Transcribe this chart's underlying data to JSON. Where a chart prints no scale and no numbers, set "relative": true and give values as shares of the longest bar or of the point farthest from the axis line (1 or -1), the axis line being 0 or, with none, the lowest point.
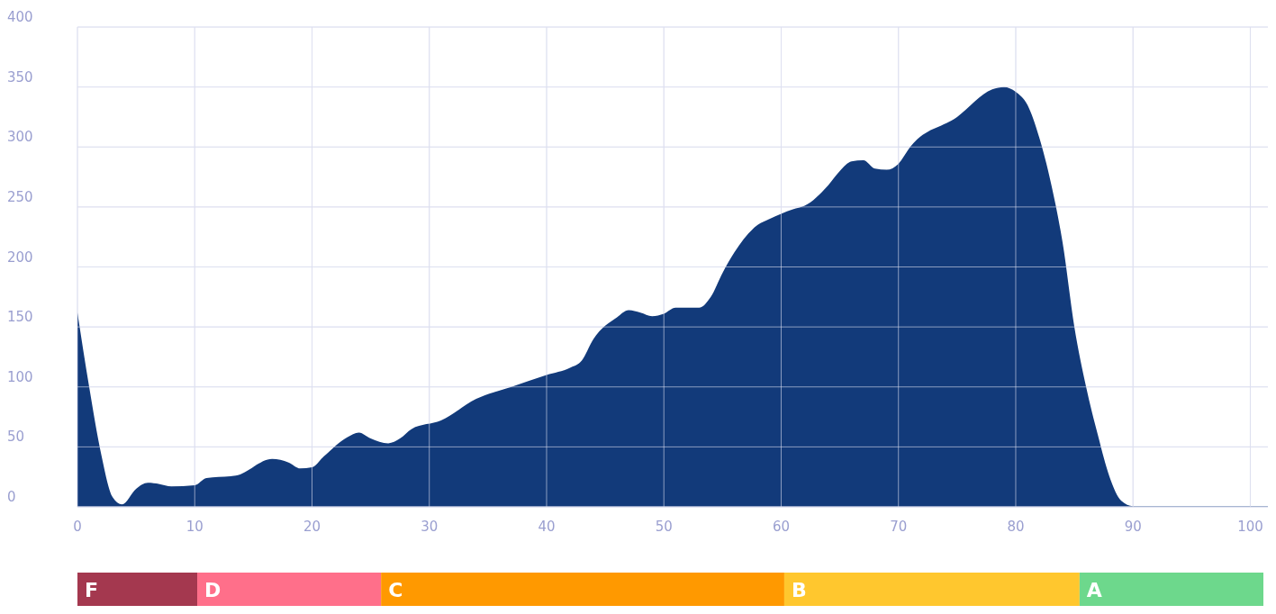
{
  "chart_data": [
    {
      "type": "area",
      "color": "#123a7a",
      "x": [
        0,
        1,
        2,
        3,
        3.8,
        5,
        6,
        7,
        8,
        10,
        11,
        13.5,
        16.6,
        18,
        19,
        20,
        21,
        23,
        24,
        25,
        26.5,
        27.5,
        28.5,
        31,
        34,
        37,
        40,
        42,
        43,
        44,
        46,
        47,
        48,
        49,
        50,
        51,
        53,
        54,
        55,
        56,
        58,
        59,
        61,
        62,
        64,
        65,
        66,
        67,
        68,
        69,
        70,
        71,
        75,
        78,
        79,
        80,
        81,
        82,
        83,
        84,
        85,
        86,
        87,
        88,
        89,
        90,
        100,
        101.5
      ],
      "values": [
        162,
        100,
        45,
        8,
        2,
        15,
        20,
        19,
        17,
        18,
        24,
        26,
        40,
        37,
        32,
        33,
        42,
        58,
        62,
        57,
        53,
        57,
        65,
        72,
        90,
        100,
        110,
        116,
        122,
        140,
        158,
        164,
        162,
        159,
        161,
        166,
        166,
        175,
        195,
        212,
        235,
        240,
        248,
        251,
        268,
        280,
        288,
        289,
        282,
        281,
        286,
        300,
        325,
        348,
        350,
        346,
        335,
        308,
        270,
        220,
        150,
        100,
        60,
        25,
        5,
        0.5,
        0.5,
        0.5
      ],
      "xlim": [
        0,
        101.5
      ],
      "xticks": [
        0,
        10,
        20,
        30,
        40,
        50,
        60,
        70,
        80,
        90,
        100
      ],
      "ylim": [
        0,
        400
      ],
      "yticks": [
        0,
        50,
        100,
        150,
        200,
        250,
        300,
        350,
        400
      ],
      "grid": true
    },
    {
      "type": "bar",
      "orientation": "horizontal",
      "stacked": true,
      "categories": [
        null
      ],
      "relative": true,
      "series": [
        {
          "name": "F",
          "color": "#a4384f",
          "values": [
            0.101
          ]
        },
        {
          "name": "D",
          "color": "#ff6f8a",
          "values": [
            0.155
          ]
        },
        {
          "name": "C",
          "color": "#ff9900",
          "values": [
            0.34
          ]
        },
        {
          "name": "B",
          "color": "#ffc72e",
          "values": [
            0.249
          ]
        },
        {
          "name": "A",
          "color": "#6dd88c",
          "values": [
            0.155
          ]
        }
      ]
    }
  ]
}
